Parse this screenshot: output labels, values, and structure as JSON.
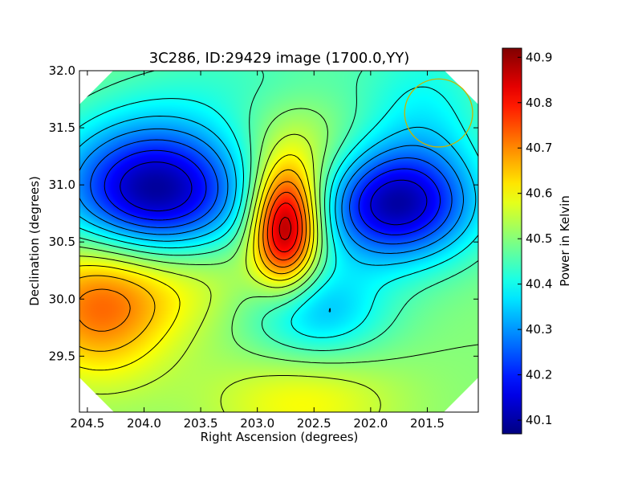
{
  "chart_data": {
    "type": "heatmap",
    "title": "3C286, ID:29429 image (1700.0,YY)",
    "xlabel": "Right Ascension (degrees)",
    "ylabel": "Declination (degrees)",
    "colorbar_label": "Power in Kelvin",
    "x_axis_inverted": true,
    "xlim": [
      204.57,
      201.05
    ],
    "ylim": [
      29.01,
      32.0
    ],
    "x_ticks": [
      "204.5",
      "204.0",
      "203.5",
      "203.0",
      "202.5",
      "202.0",
      "201.5"
    ],
    "x_tick_values": [
      204.5,
      204.0,
      203.5,
      203.0,
      202.5,
      202.0,
      201.5
    ],
    "y_ticks": [
      "29.5",
      "30.0",
      "30.5",
      "31.0",
      "31.5",
      "32.0"
    ],
    "y_tick_values": [
      29.5,
      30.0,
      30.5,
      31.0,
      31.5,
      32.0
    ],
    "color_range": [
      40.07,
      40.92
    ],
    "colorbar_ticks": [
      "40.1",
      "40.2",
      "40.3",
      "40.4",
      "40.5",
      "40.6",
      "40.7",
      "40.8",
      "40.9"
    ],
    "colorbar_tick_values": [
      40.1,
      40.2,
      40.3,
      40.4,
      40.5,
      40.6,
      40.7,
      40.8,
      40.9
    ],
    "colormap": "jet",
    "background_value": 40.5,
    "features": [
      {
        "kind": "peak",
        "ra": 202.75,
        "dec": 30.62,
        "amplitude": 0.4,
        "sigma_ra": 0.2,
        "sigma_dec": 0.35
      },
      {
        "kind": "peak",
        "ra": 202.65,
        "dec": 31.1,
        "amplitude": 0.12,
        "sigma_ra": 0.35,
        "sigma_dec": 0.4
      },
      {
        "kind": "trough",
        "ra": 203.9,
        "dec": 30.92,
        "amplitude": -0.43,
        "sigma_ra": 0.6,
        "sigma_dec": 0.45
      },
      {
        "kind": "trough",
        "ra": 201.8,
        "dec": 30.82,
        "amplitude": -0.38,
        "sigma_ra": 0.5,
        "sigma_dec": 0.35
      },
      {
        "kind": "trough",
        "ra": 201.5,
        "dec": 31.6,
        "amplitude": -0.1,
        "sigma_ra": 0.4,
        "sigma_dec": 0.5
      },
      {
        "kind": "peak",
        "ra": 204.4,
        "dec": 29.95,
        "amplitude": 0.22,
        "sigma_ra": 0.45,
        "sigma_dec": 0.45
      },
      {
        "kind": "trough",
        "ra": 202.5,
        "dec": 29.9,
        "amplitude": -0.17,
        "sigma_ra": 0.45,
        "sigma_dec": 0.3
      },
      {
        "kind": "peak",
        "ra": 202.6,
        "dec": 29.1,
        "amplitude": 0.1,
        "sigma_ra": 0.6,
        "sigma_dec": 0.3
      },
      {
        "kind": "peak",
        "ra": 203.6,
        "dec": 30.25,
        "amplitude": 0.12,
        "sigma_ra": 0.6,
        "sigma_dec": 0.35
      },
      {
        "kind": "trough",
        "ra": 203.0,
        "dec": 31.95,
        "amplitude": -0.05,
        "sigma_ra": 0.8,
        "sigma_dec": 0.3
      }
    ],
    "contour_levels": [
      40.15,
      40.2,
      40.25,
      40.3,
      40.35,
      40.4,
      40.45,
      40.5,
      40.55,
      40.6,
      40.65,
      40.7,
      40.75,
      40.8,
      40.85
    ],
    "contour_color": "#000000",
    "marker_circle": {
      "ra": 201.4,
      "dec": 31.63,
      "radius_deg": 0.3,
      "color": "#c8b400"
    }
  }
}
